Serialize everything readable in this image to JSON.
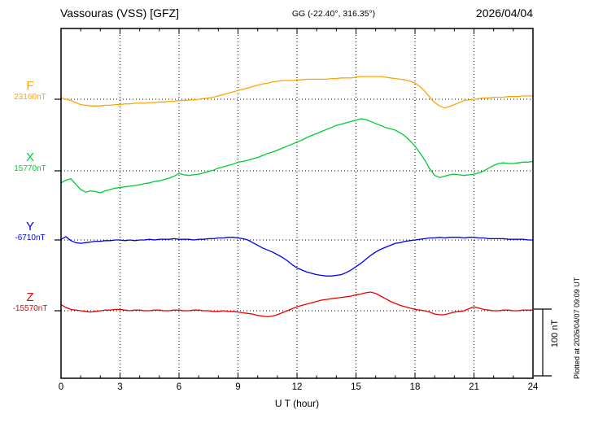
{
  "header": {
    "station_title": "Vassouras (VSS)  [GFZ]",
    "coords": "GG (-22.40°, 316.35°)",
    "date": "2026/04/04"
  },
  "footer": {
    "plotted_note": "Plotted at 2026/04/07 09:09 UT"
  },
  "chart_data": {
    "type": "line",
    "title": "Vassouras (VSS) [GFZ] magnetogram 2026/04/04",
    "xlabel": "U T (hour)",
    "xlim": [
      0,
      24
    ],
    "xticks": [
      0,
      3,
      6,
      9,
      12,
      15,
      18,
      21,
      24
    ],
    "grid": "dotted vertical at 3h, dotted horizontal baseline per component",
    "x_start": 0,
    "x_step": 0.25,
    "unit": "nT",
    "scale_bar": {
      "label": "100 nT",
      "span_nT": 100
    },
    "series": [
      {
        "name": "F",
        "baseline_label": "23160nT",
        "baseline_nT": 23160,
        "color": "#FFA500",
        "offsets_nT": [
          2,
          0,
          -2,
          -5,
          -8,
          -9,
          -10,
          -10,
          -10,
          -9,
          -9,
          -8,
          -8,
          -7,
          -7,
          -6,
          -6,
          -6,
          -5,
          -5,
          -4,
          -4,
          -3,
          -3,
          -2,
          -2,
          -1,
          -1,
          0,
          1,
          2,
          3,
          5,
          7,
          9,
          11,
          13,
          15,
          17,
          19,
          21,
          23,
          24,
          26,
          27,
          28,
          28,
          28,
          29,
          29,
          30,
          30,
          30,
          30,
          30,
          31,
          31,
          32,
          32,
          32,
          33,
          34,
          34,
          34,
          34,
          34,
          33,
          32,
          31,
          30,
          29,
          27,
          24,
          19,
          12,
          3,
          -5,
          -10,
          -13,
          -11,
          -8,
          -5,
          -2,
          -1,
          0,
          1,
          2,
          2,
          3,
          3,
          3,
          4,
          4,
          4,
          5,
          5,
          5
        ]
      },
      {
        "name": "X",
        "baseline_label": "15770nT",
        "baseline_nT": 15770,
        "color": "#00CC33",
        "offsets_nT": [
          -18,
          -14,
          -12,
          -20,
          -28,
          -32,
          -30,
          -31,
          -33,
          -30,
          -28,
          -26,
          -25,
          -24,
          -23,
          -22,
          -21,
          -19,
          -18,
          -16,
          -15,
          -13,
          -11,
          -8,
          -4,
          -6,
          -7,
          -6,
          -5,
          -3,
          -1,
          1,
          4,
          6,
          8,
          10,
          13,
          14,
          16,
          18,
          20,
          23,
          26,
          28,
          31,
          34,
          37,
          40,
          43,
          46,
          50,
          53,
          56,
          59,
          62,
          65,
          68,
          70,
          72,
          74,
          76,
          78,
          77,
          74,
          71,
          68,
          65,
          63,
          61,
          57,
          52,
          45,
          37,
          27,
          16,
          3,
          -7,
          -10,
          -8,
          -6,
          -5,
          -6,
          -7,
          -6,
          -5,
          -3,
          0,
          4,
          8,
          11,
          12,
          11,
          11,
          12,
          13,
          13,
          14
        ]
      },
      {
        "name": "Y",
        "baseline_label": "-6710nT",
        "baseline_nT": -6710,
        "color": "#0000EE",
        "offsets_nT": [
          1,
          5,
          -1,
          -4,
          -5,
          -4,
          -3,
          -2,
          -2,
          -1,
          -1,
          0,
          0,
          -1,
          0,
          -1,
          0,
          0,
          1,
          0,
          1,
          1,
          1,
          2,
          1,
          1,
          1,
          0,
          1,
          1,
          2,
          2,
          3,
          3,
          4,
          4,
          3,
          2,
          0,
          -4,
          -8,
          -12,
          -15,
          -18,
          -22,
          -26,
          -31,
          -37,
          -42,
          -45,
          -48,
          -50,
          -52,
          -53,
          -54,
          -54,
          -53,
          -52,
          -49,
          -45,
          -40,
          -35,
          -29,
          -23,
          -18,
          -14,
          -11,
          -8,
          -5,
          -4,
          -2,
          -1,
          0,
          1,
          2,
          3,
          3,
          4,
          3,
          4,
          4,
          4,
          3,
          4,
          4,
          3,
          3,
          2,
          2,
          2,
          2,
          1,
          1,
          1,
          1,
          0,
          0
        ]
      },
      {
        "name": "Z",
        "baseline_label": "-15570nT",
        "baseline_nT": -15570,
        "color": "#EE0000",
        "offsets_nT": [
          9,
          5,
          2,
          1,
          0,
          -1,
          -2,
          -1,
          0,
          1,
          1,
          2,
          2,
          1,
          0,
          1,
          1,
          0,
          0,
          1,
          1,
          0,
          0,
          1,
          1,
          0,
          0,
          1,
          1,
          0,
          0,
          -1,
          -1,
          0,
          -1,
          -1,
          -2,
          -3,
          -4,
          -5,
          -7,
          -8,
          -9,
          -8,
          -6,
          -3,
          0,
          3,
          6,
          8,
          10,
          12,
          14,
          16,
          17,
          18,
          19,
          20,
          21,
          22,
          24,
          25,
          27,
          28,
          26,
          22,
          18,
          14,
          11,
          8,
          6,
          4,
          2,
          1,
          0,
          -2,
          -5,
          -6,
          -6,
          -4,
          -2,
          -1,
          0,
          3,
          6,
          4,
          2,
          1,
          0,
          0,
          1,
          1,
          0,
          0,
          1,
          1,
          1
        ]
      }
    ]
  }
}
